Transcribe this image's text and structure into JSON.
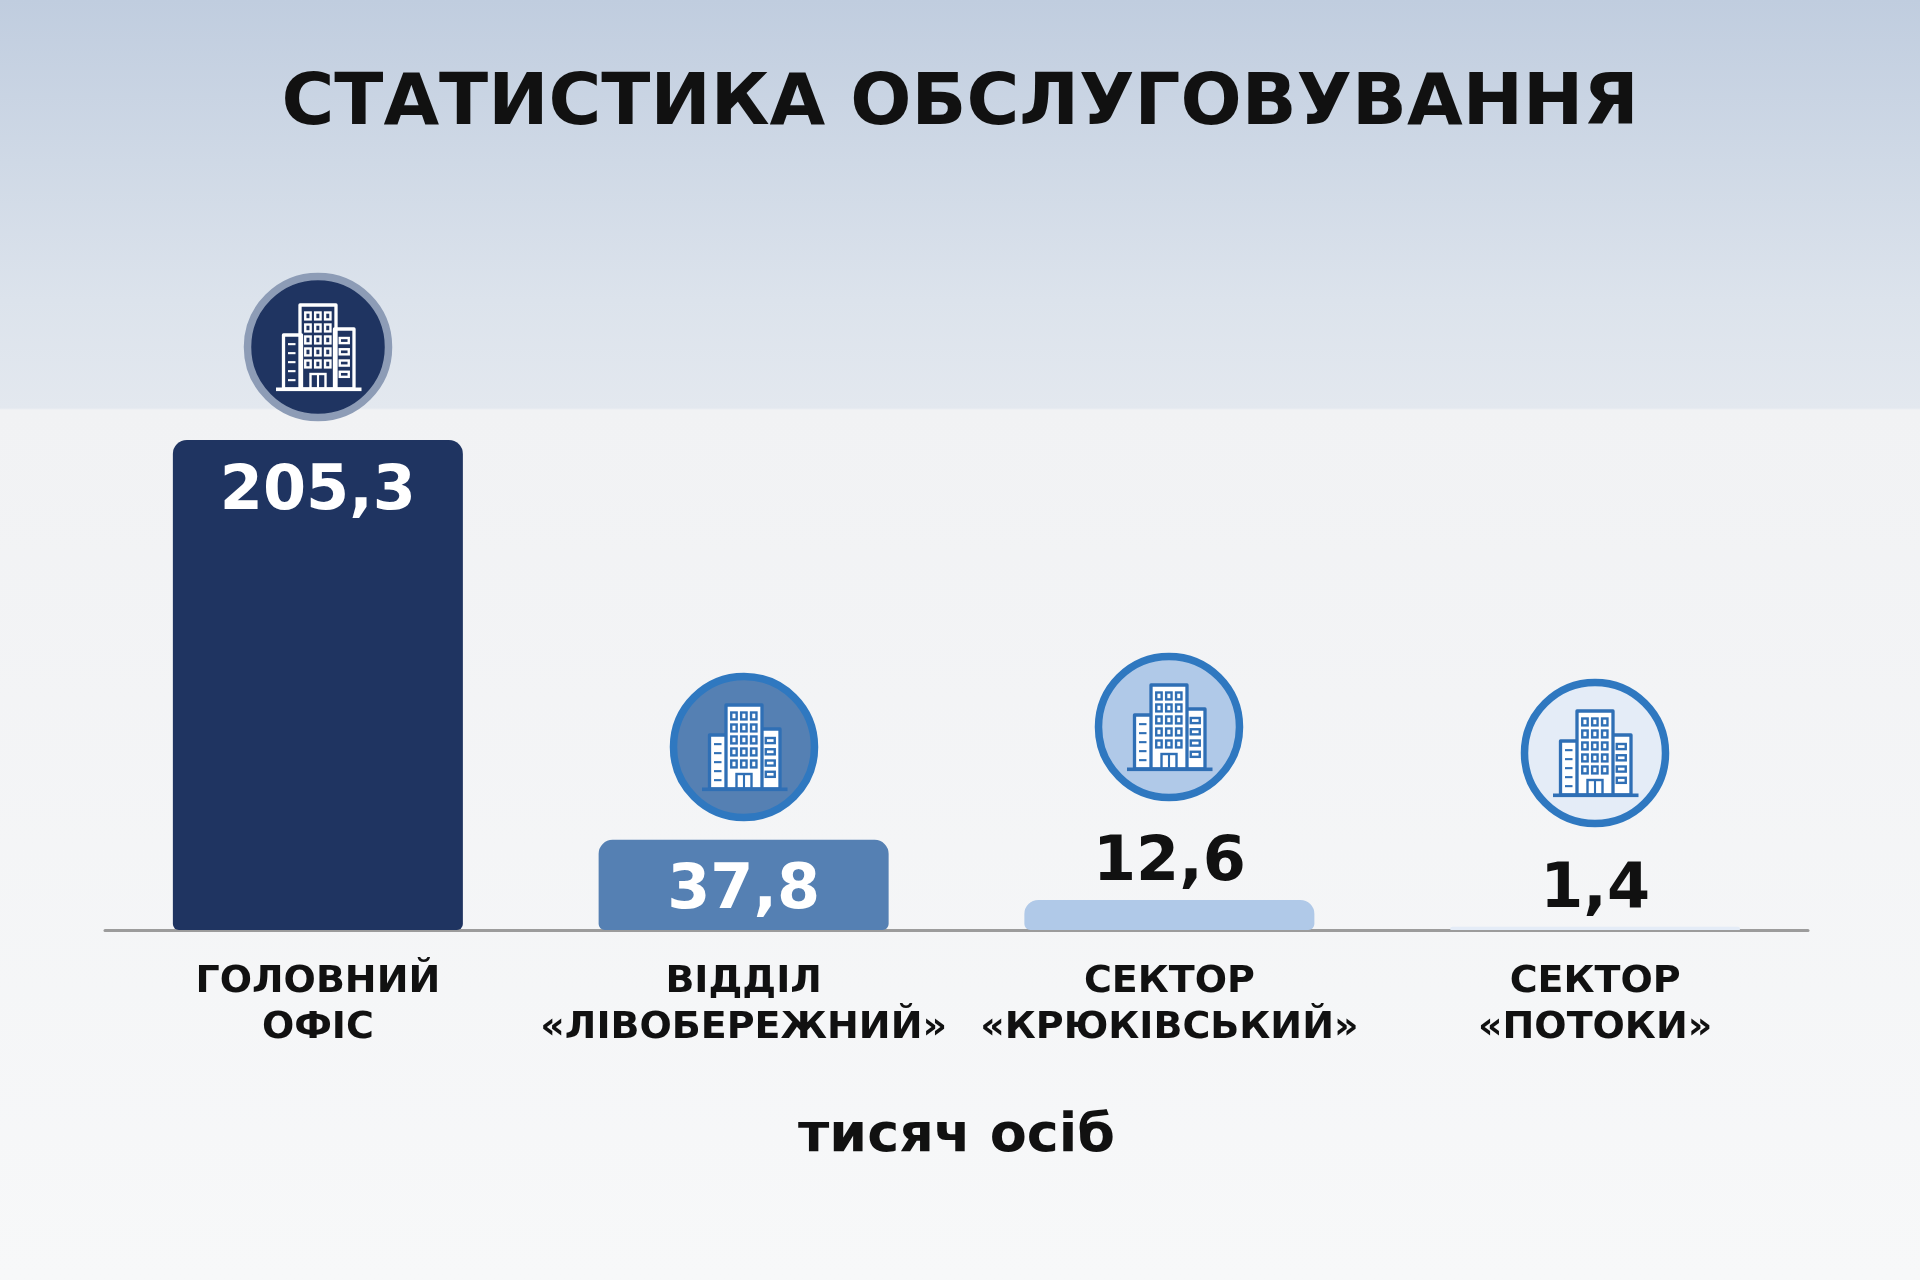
{
  "chart_data": {
    "type": "bar",
    "title": "СТАТИСТИКА ОБСЛУГОВУВАННЯ",
    "xlabel": "тисяч осіб",
    "categories": [
      "ГОЛОВНИЙ ОФІС",
      "ВІДДІЛ «ЛІВОБЕРЕЖНИЙ»",
      "СЕКТОР «КРЮКІВСЬКИЙ»",
      "СЕКТОР «ПОТОКИ»"
    ],
    "values": [
      205.3,
      37.8,
      12.6,
      1.4
    ],
    "colors": [
      "#1f3461",
      "#5580b3",
      "#b0c9e8",
      "#e4ecf7"
    ],
    "value_labels": [
      "205,3",
      "37,8",
      "12,6",
      "1,4"
    ]
  }
}
